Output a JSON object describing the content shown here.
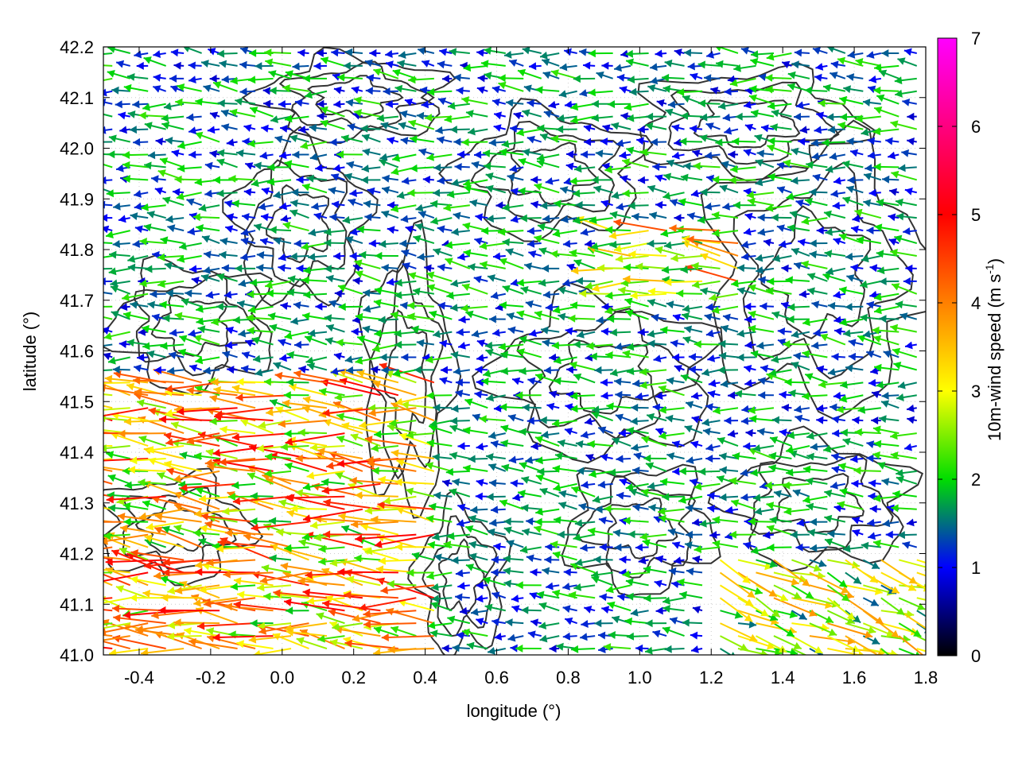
{
  "chart_data": {
    "type": "quiver",
    "xlabel": "longitude (°)",
    "ylabel": "latitude (°)",
    "colorbar_label": "10m-wind speed (m s-1)",
    "colorbar_label_parts": {
      "main": "10m-wind speed (m s",
      "sup": "-1",
      "end": ")"
    },
    "xlim": [
      -0.5,
      1.8
    ],
    "ylim": [
      41.0,
      42.2
    ],
    "xticks": [
      "-0.4",
      "-0.2",
      "0.0",
      "0.2",
      "0.4",
      "0.6",
      "0.8",
      "1.0",
      "1.2",
      "1.4",
      "1.6",
      "1.8"
    ],
    "yticks": [
      "41.0",
      "41.1",
      "41.2",
      "41.3",
      "41.4",
      "41.5",
      "41.6",
      "41.7",
      "41.8",
      "41.9",
      "42.0",
      "42.1",
      "42.2"
    ],
    "colorbar_range": [
      0,
      7
    ],
    "colorbar_ticks": [
      "0",
      "1",
      "2",
      "3",
      "4",
      "5",
      "6",
      "7"
    ],
    "colormap": [
      "#000000",
      "#0000ff",
      "#00dd00",
      "#ffff00",
      "#ff0000",
      "#ff00ff"
    ],
    "colormap_stops": [
      0,
      1,
      2,
      3,
      5,
      7
    ],
    "grid": true,
    "contour_color": "#333333",
    "wind_regions": [
      {
        "x": [
          -0.5,
          0.45
        ],
        "y": [
          41.0,
          41.55
        ],
        "u": -3.2,
        "v": 0.3,
        "speed": 3.6
      },
      {
        "x": [
          1.2,
          1.8
        ],
        "y": [
          41.0,
          41.2
        ],
        "u": 2.4,
        "v": -1.0,
        "speed": 2.8
      },
      {
        "x": [
          0.9,
          1.3
        ],
        "y": [
          41.7,
          41.85
        ],
        "u": -3.0,
        "v": 0.2,
        "speed": 3.2
      },
      {
        "x": [
          -0.5,
          1.8
        ],
        "y": [
          41.0,
          42.2
        ],
        "u": -1.4,
        "v": 0.1,
        "speed": 1.6
      }
    ]
  }
}
